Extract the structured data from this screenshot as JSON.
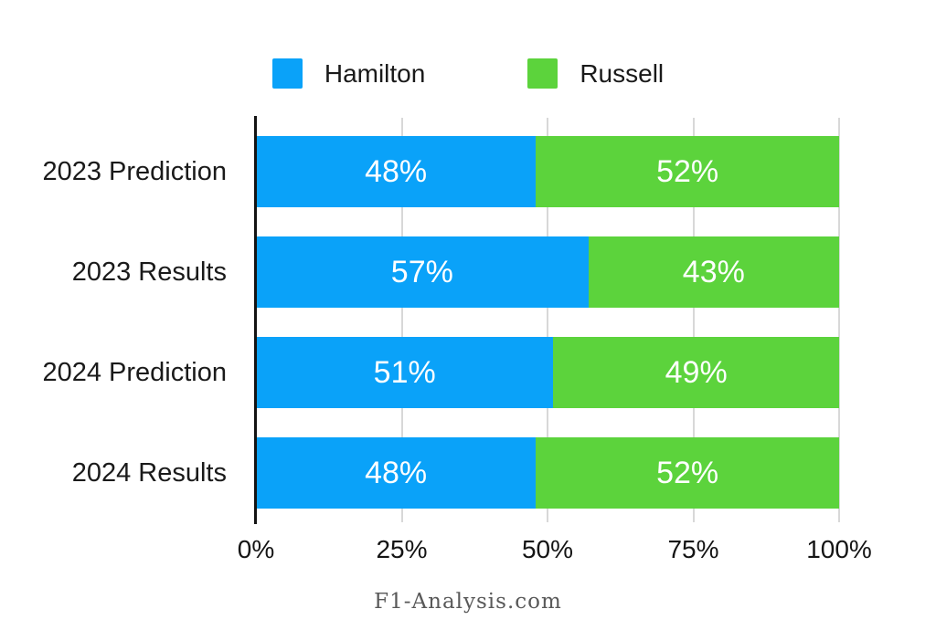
{
  "legend": {
    "items": [
      {
        "label": "Hamilton",
        "color": "#0aa2f9"
      },
      {
        "label": "Russell",
        "color": "#5cd33c"
      }
    ]
  },
  "chart_data": {
    "type": "bar",
    "orientation": "horizontal",
    "stacked": true,
    "categories": [
      "2023 Prediction",
      "2023 Results",
      "2024 Prediction",
      "2024 Results"
    ],
    "series": [
      {
        "name": "Hamilton",
        "color": "#0aa2f9",
        "values": [
          48,
          57,
          51,
          48
        ],
        "labels": [
          "48%",
          "57%",
          "51%",
          "48%"
        ]
      },
      {
        "name": "Russell",
        "color": "#5cd33c",
        "values": [
          52,
          43,
          49,
          52
        ],
        "labels": [
          "52%",
          "43%",
          "49%",
          "52%"
        ]
      }
    ],
    "xlim": [
      0,
      100
    ],
    "xticks": [
      {
        "label": "0%",
        "pos": 0
      },
      {
        "label": "25%",
        "pos": 25
      },
      {
        "label": "50%",
        "pos": 50
      },
      {
        "label": "75%",
        "pos": 75
      },
      {
        "label": "100%",
        "pos": 100
      }
    ],
    "grid": "vertical-only",
    "legend_position": "top",
    "bar_label_color": "#ffffff",
    "grid_color": "#d8d8d8",
    "axis_color": "#141414"
  },
  "footer": {
    "text": "F1-Analysis.com"
  }
}
